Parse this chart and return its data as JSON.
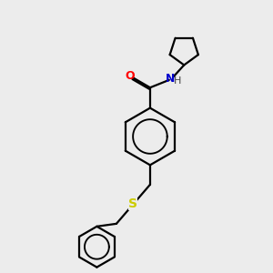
{
  "bg_color": "#ececec",
  "line_color": "#000000",
  "O_color": "#ff0000",
  "N_color": "#0000cd",
  "S_color": "#cccc00",
  "line_width": 1.6,
  "figsize": [
    3.0,
    3.0
  ],
  "dpi": 100,
  "xlim": [
    0,
    10
  ],
  "ylim": [
    0,
    10
  ]
}
